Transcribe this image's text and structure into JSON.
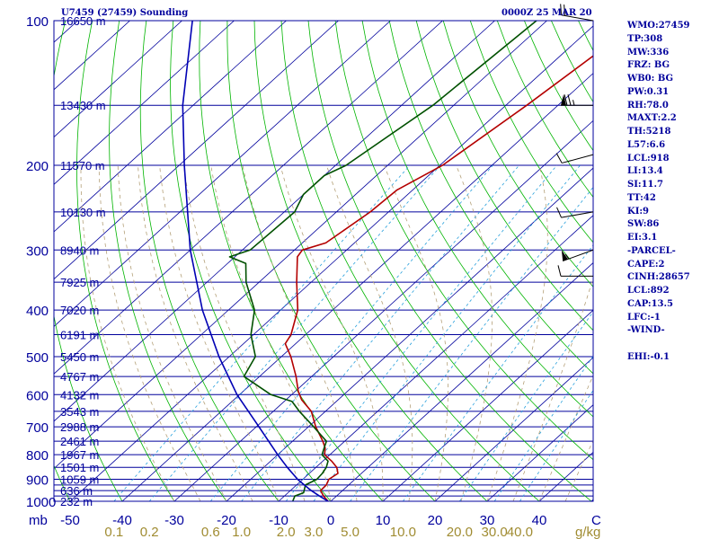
{
  "header": {
    "station_title": "U7459 (27459) Sounding",
    "valid_time": "0000Z 25 MAR 20"
  },
  "indices": [
    "WMO:27459",
    "TP:308",
    "MW:336",
    "FRZ: BG",
    "WB0: BG",
    "PW:0.31",
    "RH:78.0",
    "MAXT:2.2",
    "TH:5218",
    "L57:6.6",
    "LCL:918",
    "LI:13.4",
    "SI:11.7",
    "TT:42",
    "KI:9",
    "SW:86",
    "EI:3.1",
    "-PARCEL-",
    "CAPE:2",
    "CINH:28657",
    "LCL:892",
    "CAP:13.5",
    "LFC:-1",
    "-WIND-",
    "",
    "EHI:-0.1"
  ],
  "colors": {
    "frame": "#00009c",
    "isobar": "#00009c",
    "isotherm": "#00009c",
    "dry_adiabat": "#00b400",
    "moist_adiabat": "#b4a078",
    "mixing_ratio": "#28a0dc",
    "temperature": "#b40000",
    "dewpoint": "#005000",
    "parcel": "#0000b4",
    "axis_text": "#00009c",
    "mixing_text": "#a08c32",
    "wind": "#000000"
  },
  "chart_data": {
    "type": "line",
    "title": "U7459 (27459) Sounding",
    "pressure_unit": "mb",
    "pressure_labels": [
      100,
      200,
      300,
      400,
      500,
      600,
      700,
      800,
      900,
      1000
    ],
    "pressure_lines": [
      100,
      150,
      200,
      250,
      300,
      350,
      400,
      450,
      500,
      550,
      600,
      650,
      700,
      750,
      800,
      850,
      900,
      925,
      950,
      975,
      1000
    ],
    "height_labels": [
      {
        "p": 100,
        "text": "16650 m"
      },
      {
        "p": 150,
        "text": "13430 m"
      },
      {
        "p": 200,
        "text": "11570 m"
      },
      {
        "p": 250,
        "text": "10130 m"
      },
      {
        "p": 300,
        "text": "8940 m"
      },
      {
        "p": 350,
        "text": "7925 m"
      },
      {
        "p": 400,
        "text": "7020 m"
      },
      {
        "p": 450,
        "text": "6191 m"
      },
      {
        "p": 500,
        "text": "5450 m"
      },
      {
        "p": 550,
        "text": "4767 m"
      },
      {
        "p": 600,
        "text": "4132 m"
      },
      {
        "p": 650,
        "text": "3543 m"
      },
      {
        "p": 700,
        "text": "2988 m"
      },
      {
        "p": 750,
        "text": "2461 m"
      },
      {
        "p": 800,
        "text": "1967 m"
      },
      {
        "p": 850,
        "text": "1501 m"
      },
      {
        "p": 900,
        "text": "1059 m"
      },
      {
        "p": 950,
        "text": "636 m"
      },
      {
        "p": 1000,
        "text": "232 m"
      }
    ],
    "temperature_axis": {
      "labels": [
        -50,
        -40,
        -30,
        -20,
        -10,
        0,
        10,
        20,
        30,
        40
      ],
      "range": [
        -50,
        50
      ]
    },
    "mixing_ratio_axis": {
      "unit": "g/kg",
      "labels": [
        "0.1",
        "0.2",
        "0.6",
        "1.0",
        "2.0",
        "3.0",
        "5.0",
        "10.0",
        "20.0",
        "30.0",
        "40.0"
      ],
      "values": [
        0.1,
        0.2,
        0.6,
        1.0,
        2.0,
        3.0,
        5.0,
        10.0,
        20.0,
        30.0,
        40.0
      ]
    },
    "series": [
      {
        "key": "temperature",
        "values": [
          {
            "p": 1000,
            "t": -0.5
          },
          {
            "p": 975,
            "t": -2.5
          },
          {
            "p": 950,
            "t": -4.2
          },
          {
            "p": 925,
            "t": -4.3
          },
          {
            "p": 900,
            "t": -5.0
          },
          {
            "p": 875,
            "t": -4.5
          },
          {
            "p": 850,
            "t": -6.0
          },
          {
            "p": 825,
            "t": -8.3
          },
          {
            "p": 800,
            "t": -11.0
          },
          {
            "p": 775,
            "t": -12.3
          },
          {
            "p": 750,
            "t": -14.2
          },
          {
            "p": 700,
            "t": -18.6
          },
          {
            "p": 650,
            "t": -22.7
          },
          {
            "p": 615,
            "t": -27.0
          },
          {
            "p": 600,
            "t": -28.5
          },
          {
            "p": 590,
            "t": -29.5
          },
          {
            "p": 550,
            "t": -33.0
          },
          {
            "p": 500,
            "t": -38.2
          },
          {
            "p": 470,
            "t": -42.0
          },
          {
            "p": 450,
            "t": -42.8
          },
          {
            "p": 400,
            "t": -46.7
          },
          {
            "p": 350,
            "t": -52.8
          },
          {
            "p": 310,
            "t": -58.0
          },
          {
            "p": 300,
            "t": -58.5
          },
          {
            "p": 290,
            "t": -55.5
          },
          {
            "p": 250,
            "t": -53.5
          },
          {
            "p": 225,
            "t": -53.0
          },
          {
            "p": 200,
            "t": -49.5
          },
          {
            "p": 150,
            "t": -46.0
          },
          {
            "p": 100,
            "t": -42.0
          }
        ]
      },
      {
        "key": "dewpoint",
        "values": [
          {
            "p": 1000,
            "t": -7.3
          },
          {
            "p": 975,
            "t": -8.0
          },
          {
            "p": 960,
            "t": -7.0
          },
          {
            "p": 925,
            "t": -8.3
          },
          {
            "p": 900,
            "t": -7.3
          },
          {
            "p": 875,
            "t": -7.5
          },
          {
            "p": 850,
            "t": -8.0
          },
          {
            "p": 825,
            "t": -9.0
          },
          {
            "p": 800,
            "t": -11.5
          },
          {
            "p": 775,
            "t": -12.5
          },
          {
            "p": 750,
            "t": -13.5
          },
          {
            "p": 700,
            "t": -19.0
          },
          {
            "p": 650,
            "t": -25.0
          },
          {
            "p": 620,
            "t": -28.5
          },
          {
            "p": 600,
            "t": -34.0
          },
          {
            "p": 550,
            "t": -43.0
          },
          {
            "p": 500,
            "t": -45.0
          },
          {
            "p": 450,
            "t": -50.5
          },
          {
            "p": 400,
            "t": -55.0
          },
          {
            "p": 350,
            "t": -62.5
          },
          {
            "p": 320,
            "t": -66.5
          },
          {
            "p": 310,
            "t": -71.0
          },
          {
            "p": 300,
            "t": -68.5
          },
          {
            "p": 250,
            "t": -68.0
          },
          {
            "p": 230,
            "t": -70.0
          },
          {
            "p": 210,
            "t": -70.0
          },
          {
            "p": 200,
            "t": -68.0
          },
          {
            "p": 150,
            "t": -64.0
          },
          {
            "p": 100,
            "t": -62.0
          }
        ]
      },
      {
        "key": "parcel",
        "values": [
          {
            "p": 1000,
            "t": -0.5
          },
          {
            "p": 975,
            "t": -3.3
          },
          {
            "p": 950,
            "t": -6.0
          },
          {
            "p": 925,
            "t": -8.5
          },
          {
            "p": 900,
            "t": -11.0
          },
          {
            "p": 850,
            "t": -15.5
          },
          {
            "p": 800,
            "t": -20.0
          },
          {
            "p": 700,
            "t": -29.5
          },
          {
            "p": 600,
            "t": -40.5
          },
          {
            "p": 500,
            "t": -52.0
          },
          {
            "p": 400,
            "t": -65.0
          },
          {
            "p": 300,
            "t": -80.0
          },
          {
            "p": 200,
            "t": -99.0
          },
          {
            "p": 150,
            "t": -112.0
          },
          {
            "p": 100,
            "t": -128.0
          }
        ]
      }
    ],
    "wind": [
      {
        "p": 100,
        "dir": 280,
        "spd": 20
      },
      {
        "p": 150,
        "dir": 270,
        "spd": 75
      },
      {
        "p": 190,
        "dir": 255,
        "spd": 10
      },
      {
        "p": 250,
        "dir": 260,
        "spd": 10
      },
      {
        "p": 300,
        "dir": 250,
        "spd": 55
      },
      {
        "p": 340,
        "dir": 270,
        "spd": 10
      }
    ]
  }
}
